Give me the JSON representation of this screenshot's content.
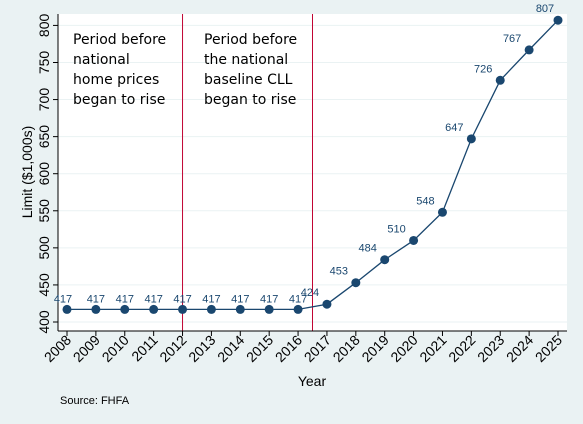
{
  "chart_data": {
    "type": "line",
    "x": [
      2008,
      2009,
      2010,
      2011,
      2012,
      2013,
      2014,
      2015,
      2016,
      2017,
      2018,
      2019,
      2020,
      2021,
      2022,
      2023,
      2024,
      2025
    ],
    "values": [
      417,
      417,
      417,
      417,
      417,
      417,
      417,
      417,
      417,
      424,
      453,
      484,
      510,
      548,
      647,
      726,
      767,
      807
    ],
    "data_labels": [
      "417",
      "417",
      "417",
      "417",
      "417",
      "417",
      "417",
      "417",
      "417",
      "424",
      "453",
      "484",
      "510",
      "548",
      "647",
      "726",
      "767",
      "807"
    ],
    "xlabel": "Year",
    "ylabel": "Limit ($1,000s)",
    "xlim": [
      2008,
      2025
    ],
    "ylim": [
      400,
      810
    ],
    "yticks": [
      400,
      450,
      500,
      550,
      600,
      650,
      700,
      750,
      800
    ],
    "xticks": [
      2008,
      2009,
      2010,
      2011,
      2012,
      2013,
      2014,
      2015,
      2016,
      2017,
      2018,
      2019,
      2020,
      2021,
      2022,
      2023,
      2024,
      2025
    ],
    "grid": true,
    "vlines": [
      2012,
      2016.5
    ],
    "annotations": [
      {
        "lines": [
          "Period before",
          "national",
          "home prices",
          "began to rise"
        ]
      },
      {
        "lines": [
          "Period before",
          "the national",
          "baseline CLL",
          "began to rise"
        ]
      }
    ],
    "note": "Source: FHFA",
    "colors": {
      "line": "#1a476f",
      "marker": "#1a476f",
      "vline": "#c10534",
      "grid": "#eaf2f3",
      "background": "#eaf2f3",
      "plot_bg": "#ffffff"
    }
  }
}
